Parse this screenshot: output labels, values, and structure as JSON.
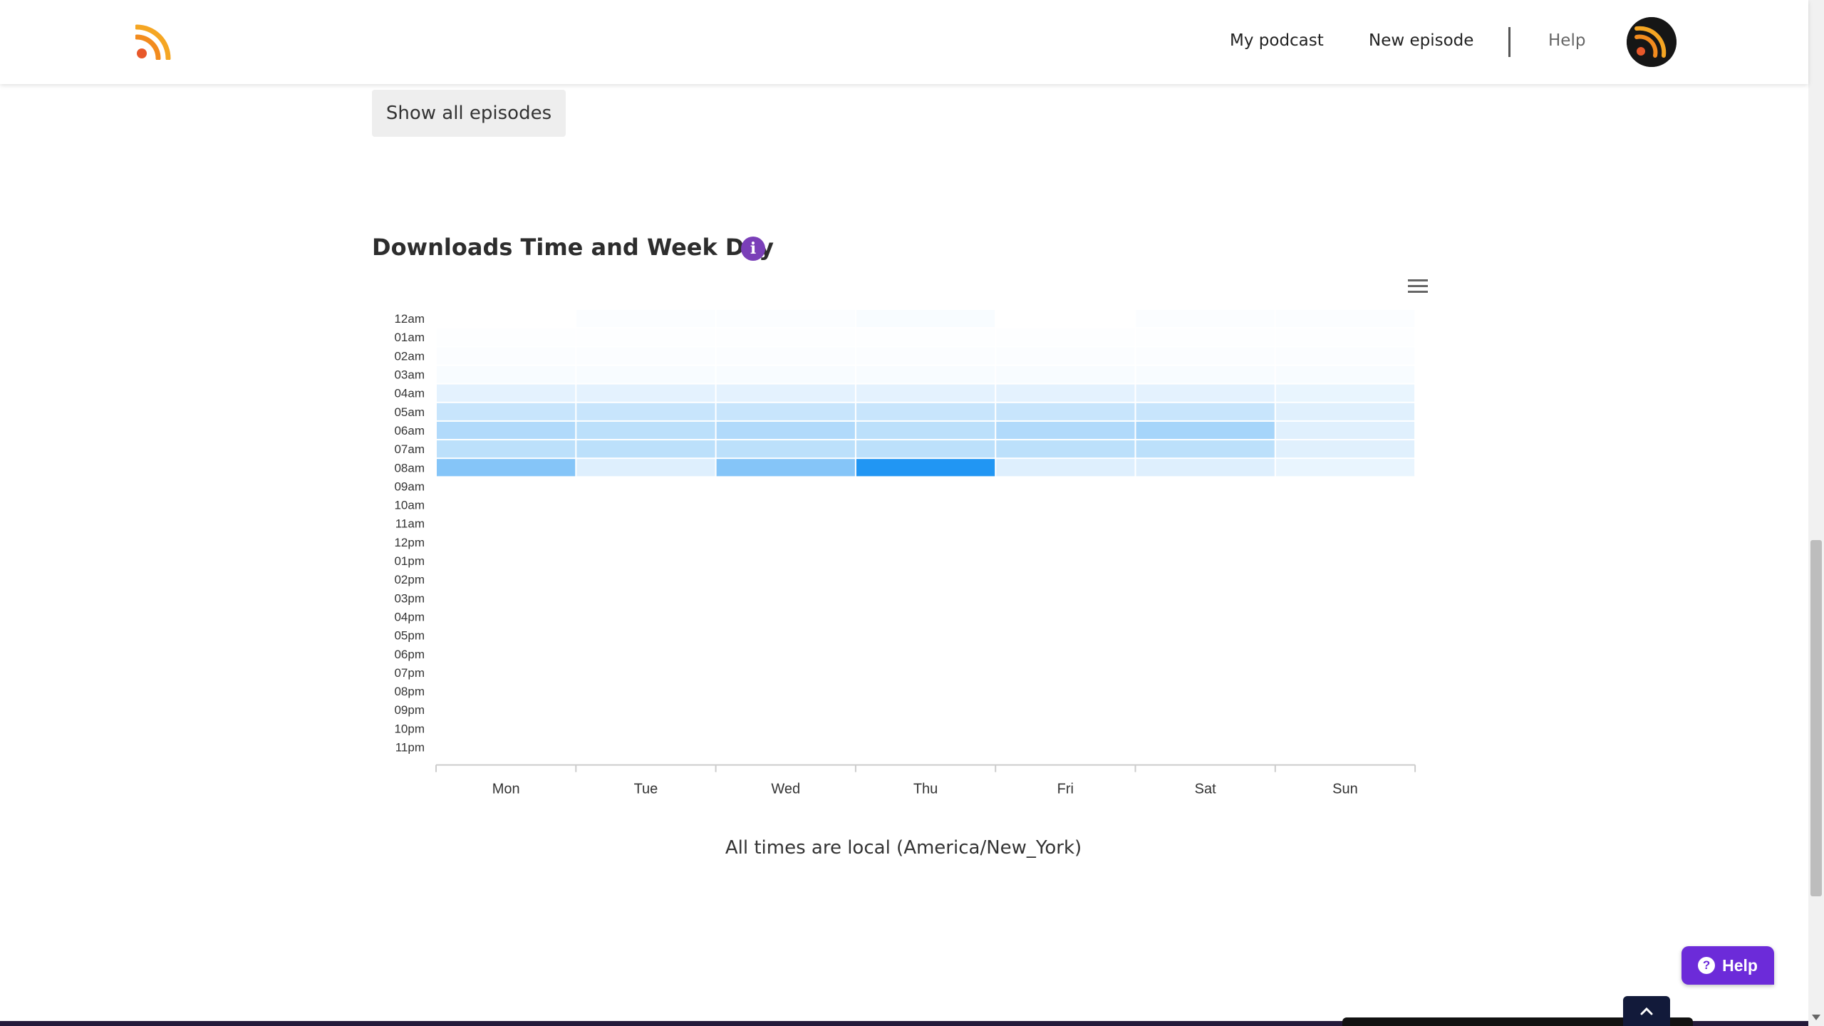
{
  "header": {
    "logo_icon": "rss-icon",
    "nav": {
      "my_podcast": "My podcast",
      "new_episode": "New episode",
      "help": "Help"
    },
    "avatar_icon": "podcast-avatar"
  },
  "episodes": {
    "show_all_label": "Show all episodes"
  },
  "section": {
    "title": "Downloads Time and Week Day",
    "info_icon": "info-icon",
    "menu_icon": "hamburger-menu-icon"
  },
  "chart_data": {
    "type": "heatmap",
    "title": "",
    "xlabel": "",
    "ylabel": "",
    "x_categories": [
      "Mon",
      "Tue",
      "Wed",
      "Thu",
      "Fri",
      "Sat",
      "Sun"
    ],
    "y_categories": [
      "12am",
      "01am",
      "02am",
      "03am",
      "04am",
      "05am",
      "06am",
      "07am",
      "08am",
      "09am",
      "10am",
      "11am",
      "12pm",
      "01pm",
      "02pm",
      "03pm",
      "04pm",
      "05pm",
      "06pm",
      "07pm",
      "08pm",
      "09pm",
      "10pm",
      "11pm"
    ],
    "color_scale": {
      "min_color": "#ffffff",
      "max_color": "#2196f3",
      "min": 0,
      "max": 1
    },
    "values": [
      [
        0.0,
        0.02,
        0.02,
        0.03,
        0.0,
        0.02,
        0.02
      ],
      [
        0.01,
        0.01,
        0.01,
        0.01,
        0.01,
        0.01,
        0.01
      ],
      [
        0.02,
        0.02,
        0.02,
        0.02,
        0.02,
        0.02,
        0.02
      ],
      [
        0.03,
        0.03,
        0.03,
        0.03,
        0.03,
        0.03,
        0.03
      ],
      [
        0.12,
        0.12,
        0.12,
        0.12,
        0.12,
        0.12,
        0.1
      ],
      [
        0.25,
        0.25,
        0.25,
        0.25,
        0.25,
        0.25,
        0.14
      ],
      [
        0.35,
        0.3,
        0.35,
        0.3,
        0.35,
        0.4,
        0.14
      ],
      [
        0.3,
        0.3,
        0.3,
        0.3,
        0.3,
        0.3,
        0.14
      ],
      [
        0.55,
        0.15,
        0.55,
        1.0,
        0.15,
        0.15,
        0.1
      ],
      [
        0,
        0,
        0,
        0,
        0,
        0,
        0
      ],
      [
        0,
        0,
        0,
        0,
        0,
        0,
        0
      ],
      [
        0,
        0,
        0,
        0,
        0,
        0,
        0
      ],
      [
        0,
        0,
        0,
        0,
        0,
        0,
        0
      ],
      [
        0,
        0,
        0,
        0,
        0,
        0,
        0
      ],
      [
        0,
        0,
        0,
        0,
        0,
        0,
        0
      ],
      [
        0,
        0,
        0,
        0,
        0,
        0,
        0
      ],
      [
        0,
        0,
        0,
        0,
        0,
        0,
        0
      ],
      [
        0,
        0,
        0,
        0,
        0,
        0,
        0
      ],
      [
        0,
        0,
        0,
        0,
        0,
        0,
        0
      ],
      [
        0,
        0,
        0,
        0,
        0,
        0,
        0
      ],
      [
        0,
        0,
        0,
        0,
        0,
        0,
        0
      ],
      [
        0,
        0,
        0,
        0,
        0,
        0,
        0
      ],
      [
        0,
        0,
        0,
        0,
        0,
        0,
        0
      ],
      [
        0,
        0,
        0,
        0,
        0,
        0,
        0
      ]
    ],
    "legend": "none",
    "grid": false
  },
  "footnote": "All times are local (America/New_York)",
  "help_widget": {
    "label": "Help",
    "icon": "question-circle-icon"
  },
  "scroll_top_icon": "chevron-up-icon"
}
